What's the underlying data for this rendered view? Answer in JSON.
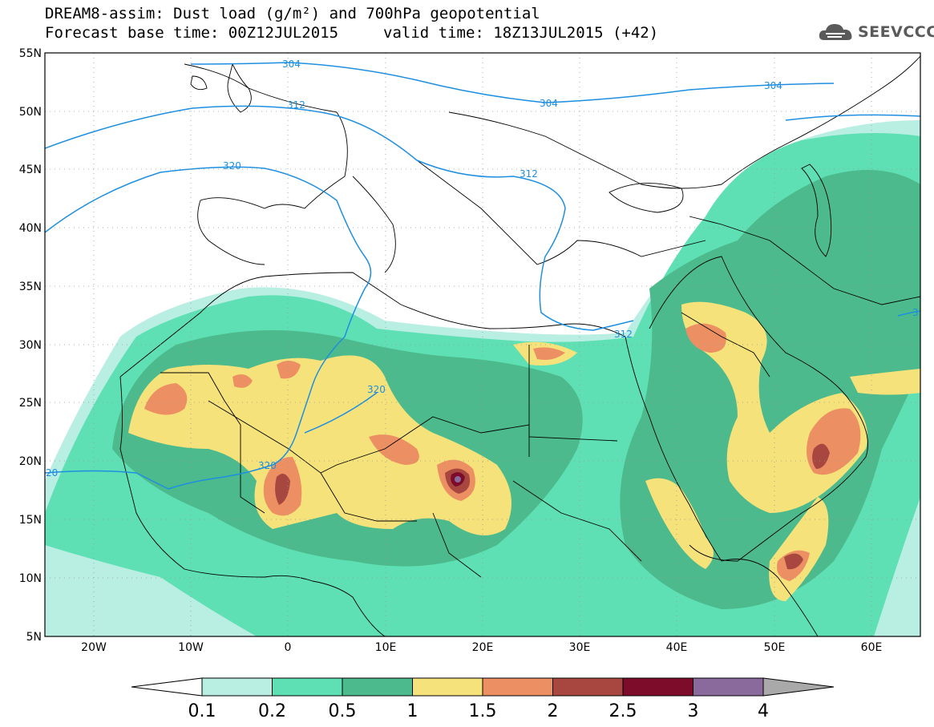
{
  "header": {
    "title": "DREAM8-assim: Dust load (g/m²) and 700hPa geopotential",
    "base_time": "Forecast base time: 00Z12JUL2015",
    "valid_time": "valid time: 18Z13JUL2015 (+42)",
    "logo_text": "SEEVCCC",
    "logo_icon": "cloud-icon"
  },
  "map": {
    "lon_range": [
      -25,
      65
    ],
    "lat_range": [
      5,
      55
    ],
    "lat_ticks": [
      "55N",
      "50N",
      "45N",
      "40N",
      "35N",
      "30N",
      "25N",
      "20N",
      "15N",
      "10N",
      "5N"
    ],
    "lon_ticks": [
      "20W",
      "10W",
      "0",
      "10E",
      "20E",
      "30E",
      "40E",
      "50E",
      "60E"
    ],
    "contour_labels": [
      "304",
      "304",
      "304",
      "312",
      "312",
      "312",
      "320",
      "320",
      "320",
      "20",
      "3"
    ],
    "contour_color": "#1e8fe0"
  },
  "colorbar": {
    "levels": [
      "0.1",
      "0.2",
      "0.5",
      "1",
      "1.5",
      "2",
      "2.5",
      "3",
      "4"
    ],
    "colors": [
      "#b9eee3",
      "#5ee0b4",
      "#4cba8c",
      "#f5e27a",
      "#ec9064",
      "#a8473f",
      "#7c0c2a",
      "#8a6a9c",
      "#a9a9a9"
    ]
  }
}
